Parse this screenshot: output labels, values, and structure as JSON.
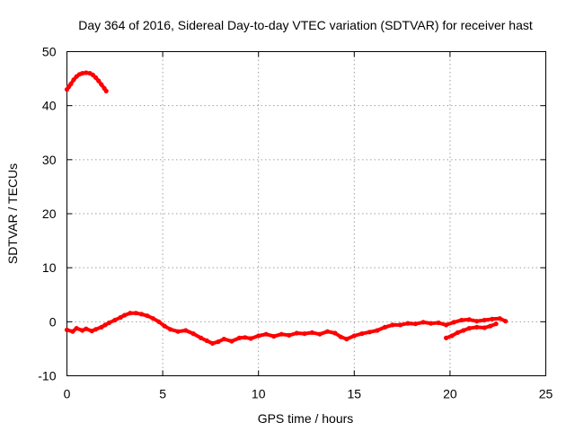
{
  "chart_data": {
    "type": "scatter",
    "title": "Day 364 of 2016, Sidereal Day-to-day VTEC variation (SDTVAR) for receiver hast",
    "xlabel": "GPS time / hours",
    "ylabel": "SDTVAR / TECUs",
    "xlim": [
      0,
      25
    ],
    "ylim": [
      -10,
      50
    ],
    "xticks": [
      0,
      5,
      10,
      15,
      20,
      25
    ],
    "yticks": [
      -10,
      0,
      10,
      20,
      30,
      40,
      50
    ],
    "grid": true,
    "series": [
      {
        "name": "SDTVAR early satellite arc",
        "color": "#ff0000",
        "points": [
          [
            0.0,
            43.0
          ],
          [
            0.1,
            43.5
          ],
          [
            0.2,
            44.0
          ],
          [
            0.35,
            44.8
          ],
          [
            0.5,
            45.4
          ],
          [
            0.65,
            45.8
          ],
          [
            0.8,
            46.0
          ],
          [
            1.0,
            46.1
          ],
          [
            1.2,
            46.0
          ],
          [
            1.35,
            45.7
          ],
          [
            1.5,
            45.2
          ],
          [
            1.65,
            44.6
          ],
          [
            1.8,
            43.9
          ],
          [
            1.95,
            43.2
          ],
          [
            2.05,
            42.7
          ]
        ]
      },
      {
        "name": "SDTVAR main arc",
        "color": "#ff0000",
        "points": [
          [
            0.0,
            -1.5
          ],
          [
            0.3,
            -1.8
          ],
          [
            0.5,
            -1.2
          ],
          [
            0.8,
            -1.6
          ],
          [
            1.0,
            -1.3
          ],
          [
            1.3,
            -1.7
          ],
          [
            1.5,
            -1.4
          ],
          [
            1.8,
            -1.0
          ],
          [
            2.0,
            -0.6
          ],
          [
            2.2,
            -0.2
          ],
          [
            2.5,
            0.3
          ],
          [
            2.8,
            0.8
          ],
          [
            3.0,
            1.2
          ],
          [
            3.3,
            1.6
          ],
          [
            3.6,
            1.6
          ],
          [
            3.9,
            1.4
          ],
          [
            4.2,
            1.1
          ],
          [
            4.5,
            0.6
          ],
          [
            4.8,
            0.0
          ],
          [
            5.1,
            -0.8
          ],
          [
            5.4,
            -1.4
          ],
          [
            5.8,
            -1.8
          ],
          [
            6.2,
            -1.6
          ],
          [
            6.6,
            -2.2
          ],
          [
            7.0,
            -3.0
          ],
          [
            7.3,
            -3.5
          ],
          [
            7.6,
            -4.0
          ],
          [
            7.9,
            -3.7
          ],
          [
            8.2,
            -3.2
          ],
          [
            8.6,
            -3.6
          ],
          [
            9.0,
            -3.0
          ],
          [
            9.3,
            -2.9
          ],
          [
            9.6,
            -3.1
          ],
          [
            10.0,
            -2.6
          ],
          [
            10.4,
            -2.3
          ],
          [
            10.8,
            -2.7
          ],
          [
            11.2,
            -2.3
          ],
          [
            11.6,
            -2.5
          ],
          [
            12.0,
            -2.1
          ],
          [
            12.4,
            -2.2
          ],
          [
            12.8,
            -2.0
          ],
          [
            13.2,
            -2.3
          ],
          [
            13.6,
            -1.8
          ],
          [
            14.0,
            -2.1
          ],
          [
            14.3,
            -2.8
          ],
          [
            14.6,
            -3.2
          ],
          [
            15.0,
            -2.6
          ],
          [
            15.4,
            -2.2
          ],
          [
            15.8,
            -1.9
          ],
          [
            16.2,
            -1.6
          ],
          [
            16.6,
            -1.0
          ],
          [
            17.0,
            -0.6
          ],
          [
            17.4,
            -0.6
          ],
          [
            17.8,
            -0.3
          ],
          [
            18.2,
            -0.4
          ],
          [
            18.6,
            -0.1
          ],
          [
            19.0,
            -0.3
          ],
          [
            19.4,
            -0.2
          ],
          [
            19.8,
            -0.6
          ],
          [
            20.2,
            -0.1
          ],
          [
            20.6,
            0.3
          ],
          [
            21.0,
            0.4
          ],
          [
            21.4,
            0.1
          ],
          [
            21.8,
            0.3
          ],
          [
            22.2,
            0.5
          ],
          [
            22.6,
            0.6
          ],
          [
            22.9,
            0.1
          ]
        ]
      },
      {
        "name": "SDTVAR late branch",
        "color": "#ff0000",
        "points": [
          [
            19.8,
            -3.0
          ],
          [
            20.1,
            -2.6
          ],
          [
            20.4,
            -2.0
          ],
          [
            20.7,
            -1.6
          ],
          [
            21.0,
            -1.2
          ],
          [
            21.4,
            -1.0
          ],
          [
            21.8,
            -1.1
          ],
          [
            22.1,
            -0.8
          ],
          [
            22.4,
            -0.4
          ]
        ]
      }
    ]
  }
}
